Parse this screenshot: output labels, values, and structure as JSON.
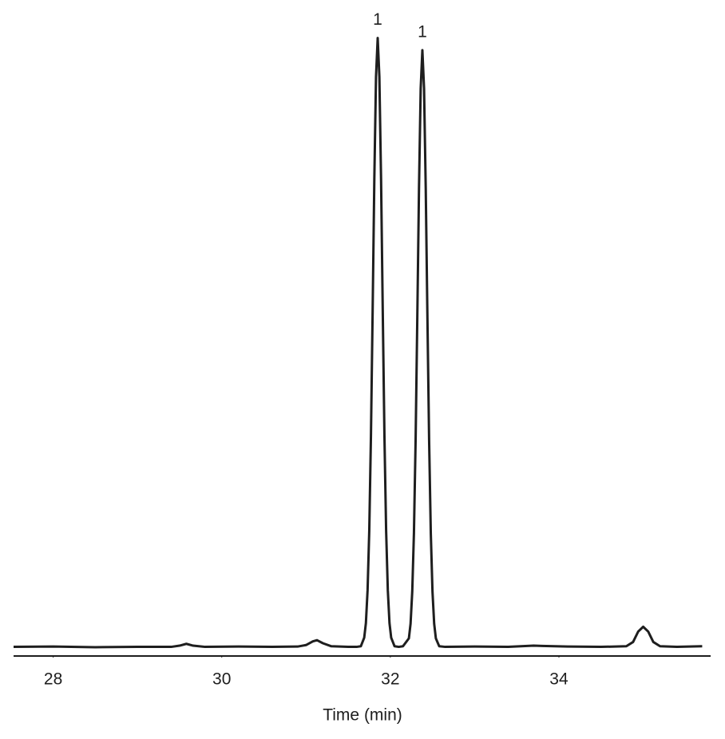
{
  "chart_data": {
    "type": "line",
    "xlabel": "Time (min)",
    "color": "#1e1e1e",
    "xlim": [
      27.53,
      35.8
    ],
    "ylim": [
      -1.5,
      101
    ],
    "xticks": [
      28,
      30,
      32,
      34
    ],
    "x": [
      27.53,
      28.0,
      28.5,
      29.0,
      29.4,
      29.5,
      29.58,
      29.66,
      29.8,
      30.2,
      30.6,
      30.9,
      31.0,
      31.08,
      31.13,
      31.2,
      31.3,
      31.5,
      31.6,
      31.65,
      31.69,
      31.71,
      31.73,
      31.75,
      31.77,
      31.79,
      31.81,
      31.83,
      31.85,
      31.87,
      31.89,
      31.91,
      31.93,
      31.95,
      31.97,
      31.99,
      32.01,
      32.05,
      32.1,
      32.15,
      32.22,
      32.24,
      32.26,
      32.28,
      32.3,
      32.32,
      32.34,
      32.36,
      32.38,
      32.4,
      32.42,
      32.44,
      32.46,
      32.48,
      32.5,
      32.52,
      32.54,
      32.58,
      32.65,
      33.0,
      33.4,
      33.7,
      33.8,
      34.1,
      34.5,
      34.8,
      34.88,
      34.94,
      35.0,
      35.06,
      35.12,
      35.2,
      35.4,
      35.7
    ],
    "values": [
      0,
      0.05,
      -0.05,
      0,
      0,
      0.2,
      0.5,
      0.2,
      0,
      0.05,
      0,
      0.05,
      0.3,
      0.9,
      1.1,
      0.6,
      0.1,
      0,
      0,
      0.1,
      1.5,
      3.9,
      9.3,
      19.1,
      34.7,
      55.2,
      76.8,
      93.6,
      100,
      93.6,
      76.8,
      55.2,
      34.7,
      19.1,
      9.3,
      3.9,
      1.5,
      0.1,
      0,
      0.1,
      1.4,
      3.8,
      9.1,
      18.7,
      34.0,
      54.1,
      75.3,
      91.7,
      98,
      91.7,
      75.3,
      54.1,
      34.0,
      18.7,
      9.1,
      3.8,
      1.4,
      0.1,
      0,
      0.05,
      0,
      0.2,
      0.15,
      0.05,
      0,
      0.1,
      0.8,
      2.5,
      3.3,
      2.5,
      0.8,
      0.1,
      0,
      0.1
    ],
    "annotations": [
      {
        "text": "1",
        "x": 31.85,
        "y": 100
      },
      {
        "text": "1",
        "x": 32.38,
        "y": 98
      }
    ]
  }
}
